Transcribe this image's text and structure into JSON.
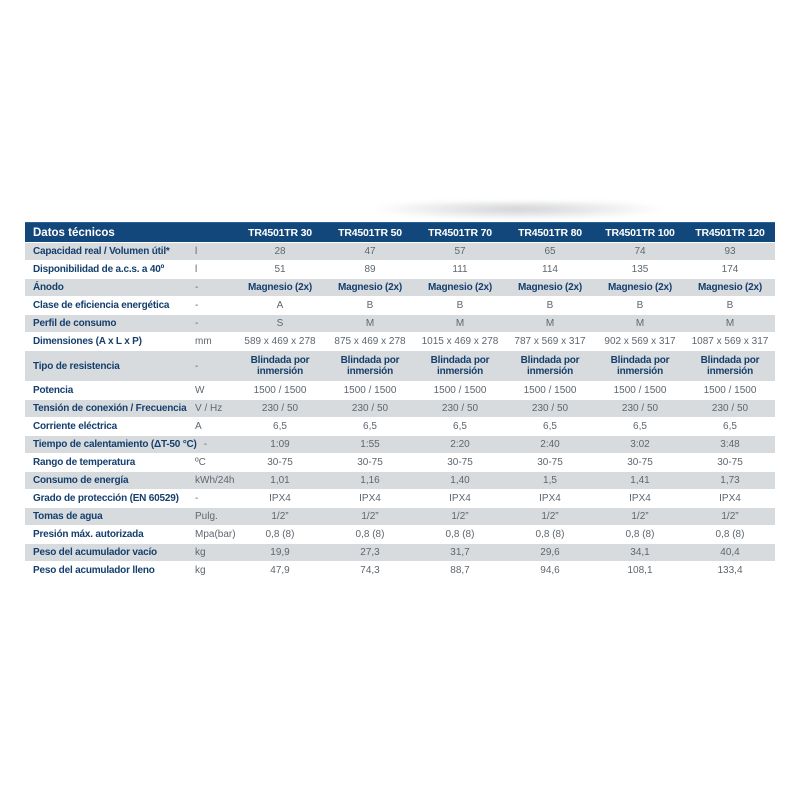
{
  "colors": {
    "header_bg": "#12477c",
    "header_text": "#ffffff",
    "row_alt_bg": "#d8dbde",
    "label_text": "#143f6d",
    "value_text": "#5d6770",
    "table_bottom_border": "#dfe2e4"
  },
  "table": {
    "title": "Datos técnicos",
    "models": [
      "TR4501TR 30",
      "TR4501TR 50",
      "TR4501TR 70",
      "TR4501TR 80",
      "TR4501TR 100",
      "TR4501TR 120"
    ],
    "rows": [
      {
        "label": "Capacidad real / Volumen útil*",
        "unit": "l",
        "values": [
          "28",
          "47",
          "57",
          "65",
          "74",
          "93"
        ]
      },
      {
        "label": "Disponibilidad de a.c.s. a 40º",
        "unit": "l",
        "values": [
          "51",
          "89",
          "111",
          "114",
          "135",
          "174"
        ]
      },
      {
        "label": "Ánodo",
        "unit": "-",
        "values": [
          "Magnesio (2x)",
          "Magnesio (2x)",
          "Magnesio (2x)",
          "Magnesio (2x)",
          "Magnesio (2x)",
          "Magnesio (2x)"
        ],
        "emphasis": true
      },
      {
        "label": "Clase de eficiencia energética",
        "unit": "-",
        "values": [
          "A",
          "B",
          "B",
          "B",
          "B",
          "B"
        ]
      },
      {
        "label": "Perfil de consumo",
        "unit": "-",
        "values": [
          "S",
          "M",
          "M",
          "M",
          "M",
          "M"
        ]
      },
      {
        "label": "Dimensiones (A x L x P)",
        "unit": "mm",
        "values": [
          "589 x 469 x 278",
          "875 x 469 x 278",
          "1015 x 469 x 278",
          "787 x 569 x 317",
          "902 x 569 x 317",
          "1087 x 569 x 317"
        ]
      },
      {
        "label": "Tipo de resistencia",
        "unit": "-",
        "values": [
          "Blindada por inmersión",
          "Blindada por inmersión",
          "Blindada por inmersión",
          "Blindada por inmersión",
          "Blindada por inmersión",
          "Blindada por inmersión"
        ],
        "emphasis": true,
        "tall": true
      },
      {
        "label": "Potencia",
        "unit": "W",
        "values": [
          "1500 / 1500",
          "1500 / 1500",
          "1500 / 1500",
          "1500 / 1500",
          "1500 / 1500",
          "1500 / 1500"
        ]
      },
      {
        "label": "Tensión de conexión / Frecuencia",
        "unit": "V / Hz",
        "values": [
          "230 / 50",
          "230 / 50",
          "230 / 50",
          "230 / 50",
          "230 / 50",
          "230 / 50"
        ]
      },
      {
        "label": "Corriente eléctrica",
        "unit": "A",
        "values": [
          "6,5",
          "6,5",
          "6,5",
          "6,5",
          "6,5",
          "6,5"
        ]
      },
      {
        "label": "Tiempo de calentamiento (ΔT-50 °C)",
        "unit": "-",
        "values": [
          "1:09",
          "1:55",
          "2:20",
          "2:40",
          "3:02",
          "3:48"
        ],
        "unit_inline": true
      },
      {
        "label": "Rango de temperatura",
        "unit": "ºC",
        "values": [
          "30-75",
          "30-75",
          "30-75",
          "30-75",
          "30-75",
          "30-75"
        ]
      },
      {
        "label": "Consumo de energía",
        "unit": "kWh/24h",
        "values": [
          "1,01",
          "1,16",
          "1,40",
          "1,5",
          "1,41",
          "1,73"
        ]
      },
      {
        "label": "Grado de protección (EN 60529)",
        "unit": "-",
        "values": [
          "IPX4",
          "IPX4",
          "IPX4",
          "IPX4",
          "IPX4",
          "IPX4"
        ]
      },
      {
        "label": "Tomas de agua",
        "unit": "Pulg.",
        "values": [
          "1/2”",
          "1/2”",
          "1/2”",
          "1/2”",
          "1/2”",
          "1/2”"
        ]
      },
      {
        "label": "Presión máx. autorizada",
        "unit": "Mpa(bar)",
        "values": [
          "0,8 (8)",
          "0,8 (8)",
          "0,8 (8)",
          "0,8 (8)",
          "0,8 (8)",
          "0,8 (8)"
        ]
      },
      {
        "label": "Peso del acumulador vacío",
        "unit": "kg",
        "values": [
          "19,9",
          "27,3",
          "31,7",
          "29,6",
          "34,1",
          "40,4"
        ]
      },
      {
        "label": "Peso del acumulador lleno",
        "unit": "kg",
        "values": [
          "47,9",
          "74,3",
          "88,7",
          "94,6",
          "108,1",
          "133,4"
        ]
      }
    ]
  }
}
